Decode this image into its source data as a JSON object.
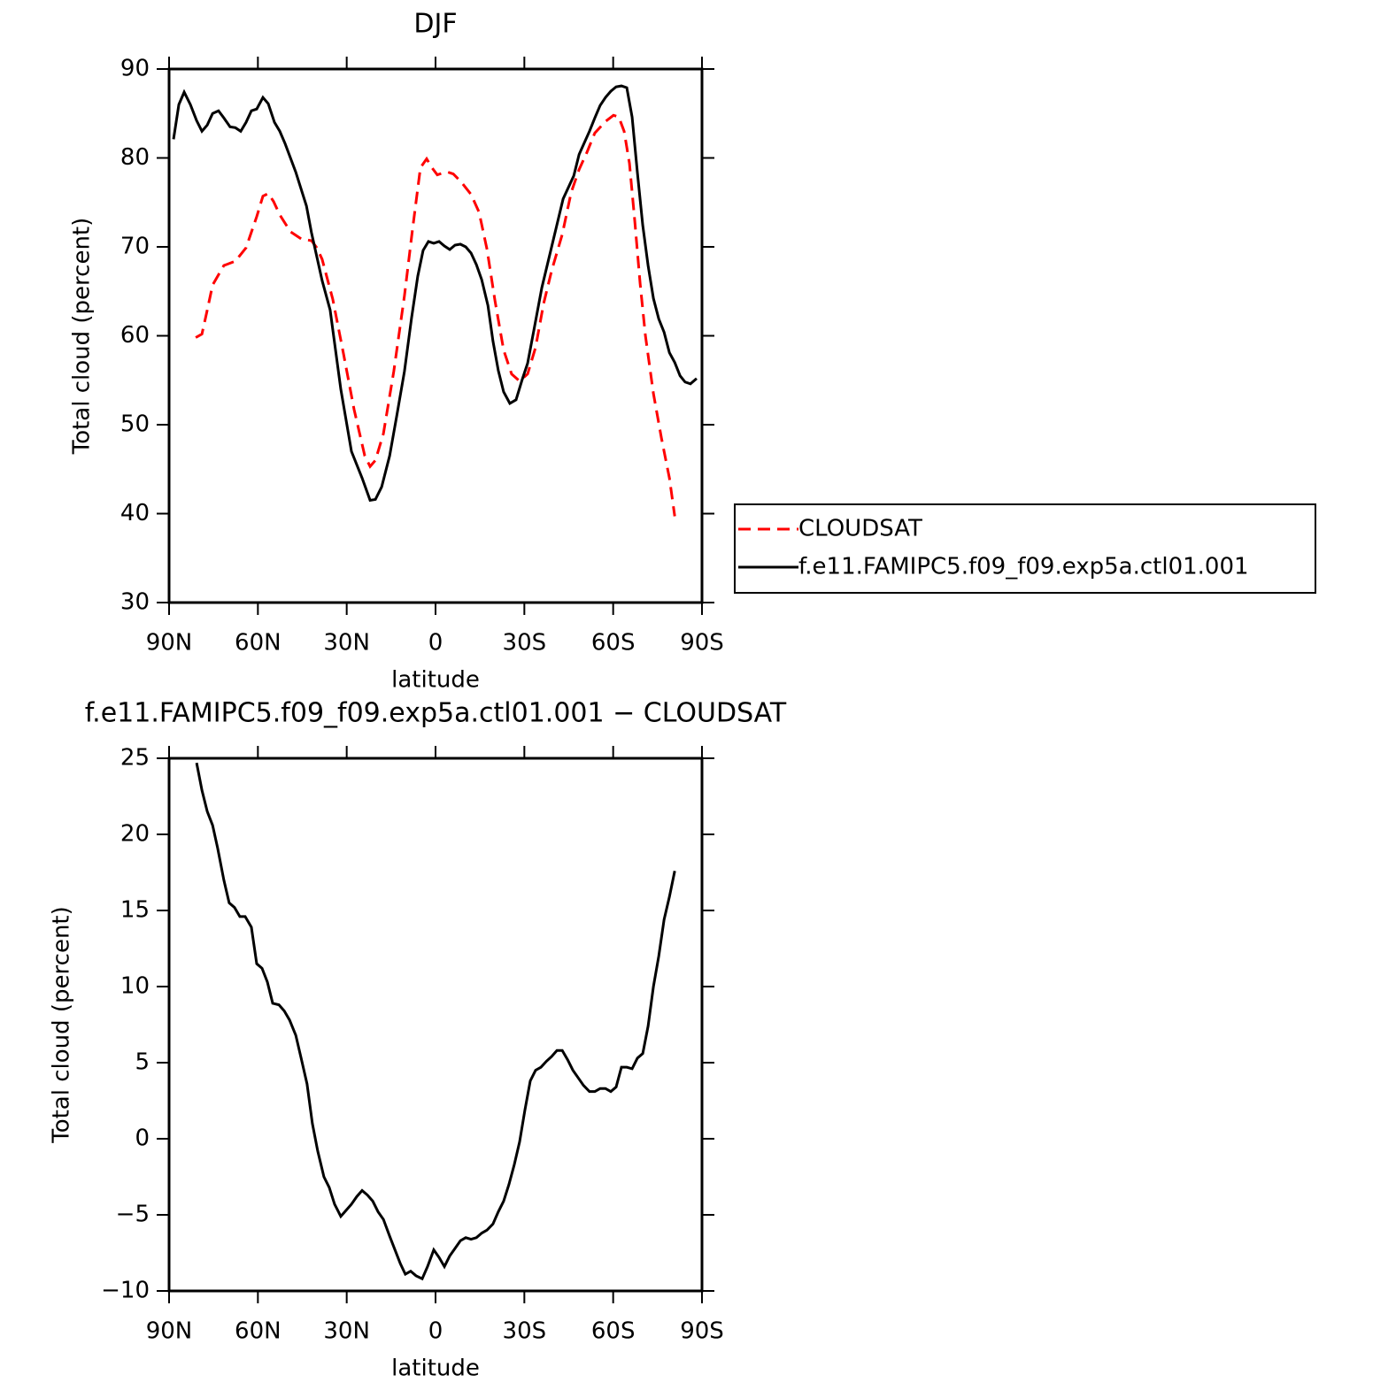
{
  "chart_data": [
    {
      "type": "line",
      "title": "DJF",
      "xlabel": "latitude",
      "ylabel": "Total cloud (percent)",
      "xlim": [
        90,
        -90
      ],
      "ylim": [
        30,
        90
      ],
      "xticks": [
        {
          "value": 90,
          "label": "90N"
        },
        {
          "value": 60,
          "label": "60N"
        },
        {
          "value": 30,
          "label": "30N"
        },
        0,
        {
          "value": -30,
          "label": "30S"
        },
        {
          "value": -60,
          "label": "60S"
        },
        {
          "value": -90,
          "label": "90S"
        }
      ],
      "yticks": [
        30,
        40,
        50,
        60,
        70,
        80,
        90
      ],
      "legend": "right",
      "series": [
        {
          "name": "CLOUDSAT",
          "color": "#ff0000",
          "dashed": true,
          "x": [
            81,
            78.9,
            77.1,
            75.3,
            71.5,
            67.6,
            64,
            60.4,
            58.3,
            56.5,
            54.7,
            52.6,
            49,
            45.4,
            41.9,
            40.1,
            38.3,
            34.7,
            31.1,
            27.5,
            23.9,
            22.1,
            20.3,
            17.6,
            14.1,
            10.5,
            7.8,
            5.1,
            3,
            1.2,
            -0.6,
            -2.4,
            -4.2,
            -6,
            -8.4,
            -12,
            -14.7,
            -17.4,
            -20.1,
            -23,
            -25.7,
            -28.4,
            -31.1,
            -33.8,
            -36.5,
            -39.2,
            -42.8,
            -45.8,
            -48.5,
            -51.1,
            -53.8,
            -57.4,
            -60.1,
            -61.9,
            -63.7,
            -65.5,
            -67.3,
            -69.1,
            -70.9,
            -73.6,
            -76.3,
            -79,
            -80.8
          ],
          "values": [
            59.8,
            60.2,
            62.9,
            65.7,
            67.9,
            68.4,
            69.9,
            73.4,
            75.7,
            76,
            75.1,
            73.6,
            71.7,
            70.9,
            70.7,
            69.9,
            68.6,
            64.1,
            58,
            51.7,
            46.5,
            45.3,
            46,
            49,
            56,
            64.5,
            71.9,
            78.9,
            79.9,
            78.9,
            78.1,
            78.3,
            78.4,
            78.2,
            77.4,
            75.9,
            73.9,
            69.7,
            63.9,
            58.4,
            55.7,
            54.9,
            55.7,
            58.7,
            63.6,
            67.3,
            71.4,
            76.1,
            78.7,
            80.6,
            82.8,
            84.1,
            84.8,
            84.6,
            83,
            79.4,
            72.9,
            65.9,
            60,
            53.5,
            48.5,
            44,
            39.7
          ]
        },
        {
          "name": "f.e11.FAMIPC5.f09_f09.exp5a.ctl01.001",
          "color": "#000000",
          "dashed": false,
          "x": [
            88.5,
            86.7,
            84.9,
            82.8,
            80.7,
            78.9,
            77.1,
            75.3,
            73.3,
            71.5,
            69.4,
            67.6,
            65.8,
            64,
            62.2,
            60.4,
            58.3,
            56.5,
            54.4,
            52.6,
            50.8,
            47.2,
            43.6,
            41.9,
            38.3,
            35.6,
            32,
            28.4,
            24.8,
            22.1,
            20.3,
            18.2,
            15.5,
            13.1,
            10.5,
            8.1,
            6,
            4.2,
            2.4,
            0.6,
            -1.2,
            -3,
            -4.8,
            -6.6,
            -8.4,
            -10.2,
            -12,
            -13.8,
            -15.6,
            -17.7,
            -19.4,
            -21.2,
            -23,
            -25.1,
            -27.2,
            -29.3,
            -31.1,
            -33.2,
            -35.9,
            -39.5,
            -43.1,
            -46.7,
            -48.5,
            -52,
            -53.8,
            -55.6,
            -57.4,
            -59.2,
            -61,
            -62.8,
            -64.6,
            -66.4,
            -68.2,
            -70,
            -71.8,
            -73.6,
            -75.4,
            -77.2,
            -79,
            -80.8,
            -82.6,
            -84.3,
            -86.1,
            -88.2
          ],
          "values": [
            82.1,
            86,
            87.4,
            86,
            84.2,
            83,
            83.7,
            85,
            85.3,
            84.5,
            83.5,
            83.4,
            83,
            84,
            85.3,
            85.5,
            86.8,
            86.1,
            84,
            83,
            81.6,
            78.4,
            74.6,
            71.6,
            66.2,
            62.9,
            54,
            47,
            44,
            41.5,
            41.6,
            43,
            46.5,
            51,
            56,
            62,
            66.7,
            69.6,
            70.6,
            70.4,
            70.6,
            70.1,
            69.7,
            70.2,
            70.3,
            70,
            69.3,
            68,
            66.3,
            63.4,
            59.4,
            56.1,
            53.7,
            52.4,
            52.8,
            55.1,
            56.9,
            60.6,
            65.4,
            70.4,
            75.4,
            78,
            80.4,
            83,
            84.5,
            85.9,
            86.8,
            87.5,
            88,
            88.1,
            87.9,
            84.6,
            78.3,
            72.4,
            67.9,
            64.2,
            61.9,
            60.4,
            58.1,
            57,
            55.5,
            54.8,
            54.6,
            55.2
          ]
        }
      ]
    },
    {
      "type": "line",
      "title": "f.e11.FAMIPC5.f09_f09.exp5a.ctl01.001 − CLOUDSAT",
      "xlabel": "latitude",
      "ylabel": "Total cloud (percent)",
      "xlim": [
        90,
        -90
      ],
      "ylim": [
        -10,
        25
      ],
      "xticks": [
        {
          "value": 90,
          "label": "90N"
        },
        {
          "value": 60,
          "label": "60N"
        },
        {
          "value": 30,
          "label": "30N"
        },
        0,
        {
          "value": -30,
          "label": "30S"
        },
        {
          "value": -60,
          "label": "60S"
        },
        {
          "value": -90,
          "label": "90S"
        }
      ],
      "yticks": [
        {
          "value": -10,
          "label": "−10"
        },
        {
          "value": -5,
          "label": "−5"
        },
        0,
        5,
        10,
        15,
        20,
        25
      ],
      "series": [
        {
          "color": "#000000",
          "dashed": false,
          "x": [
            80.7,
            78.9,
            77.1,
            75.3,
            73.6,
            71.5,
            69.7,
            67.9,
            66.1,
            64.3,
            62.2,
            60.4,
            58.6,
            56.8,
            55,
            52.9,
            51.1,
            49.3,
            47.2,
            45.4,
            43.4,
            41.6,
            39.8,
            37.7,
            35.9,
            34.1,
            32,
            30.2,
            28.4,
            26.6,
            24.8,
            23,
            21.2,
            19.4,
            17.6,
            15.5,
            13.7,
            11.9,
            10.2,
            8.4,
            6.6,
            4.5,
            2.7,
            0.6,
            -1.2,
            -3,
            -4.8,
            -6.6,
            -8.4,
            -10.2,
            -12,
            -13.8,
            -15.6,
            -17.4,
            -19.4,
            -21.2,
            -23,
            -24.8,
            -26.6,
            -28.4,
            -30.2,
            -32,
            -33.8,
            -35.6,
            -37.5,
            -39.2,
            -41,
            -42.8,
            -44.6,
            -46.4,
            -48.2,
            -50,
            -52,
            -53.8,
            -55.6,
            -57.4,
            -59.2,
            -61,
            -62.8,
            -64.6,
            -66.4,
            -68.2,
            -70,
            -71.8,
            -73.6,
            -75.4,
            -77.2,
            -79,
            -80.8
          ],
          "values": [
            24.7,
            22.9,
            21.5,
            20.6,
            19.1,
            17,
            15.5,
            15.2,
            14.6,
            14.6,
            13.9,
            11.5,
            11.2,
            10.3,
            8.9,
            8.8,
            8.4,
            7.8,
            6.8,
            5.3,
            3.6,
            1,
            -0.8,
            -2.5,
            -3.2,
            -4.3,
            -5.1,
            -4.7,
            -4.3,
            -3.8,
            -3.4,
            -3.7,
            -4.1,
            -4.8,
            -5.3,
            -6.4,
            -7.3,
            -8.2,
            -8.9,
            -8.7,
            -9,
            -9.2,
            -8.4,
            -7.3,
            -7.8,
            -8.4,
            -7.7,
            -7.2,
            -6.7,
            -6.5,
            -6.6,
            -6.5,
            -6.2,
            -6,
            -5.6,
            -4.8,
            -4.1,
            -3,
            -1.7,
            -0.2,
            1.9,
            3.8,
            4.5,
            4.7,
            5.1,
            5.4,
            5.8,
            5.8,
            5.2,
            4.5,
            4,
            3.5,
            3.1,
            3.1,
            3.3,
            3.3,
            3.1,
            3.4,
            4.7,
            4.7,
            4.6,
            5.3,
            5.6,
            7.4,
            10,
            12,
            14.4,
            15.9,
            17.6
          ]
        }
      ]
    }
  ]
}
